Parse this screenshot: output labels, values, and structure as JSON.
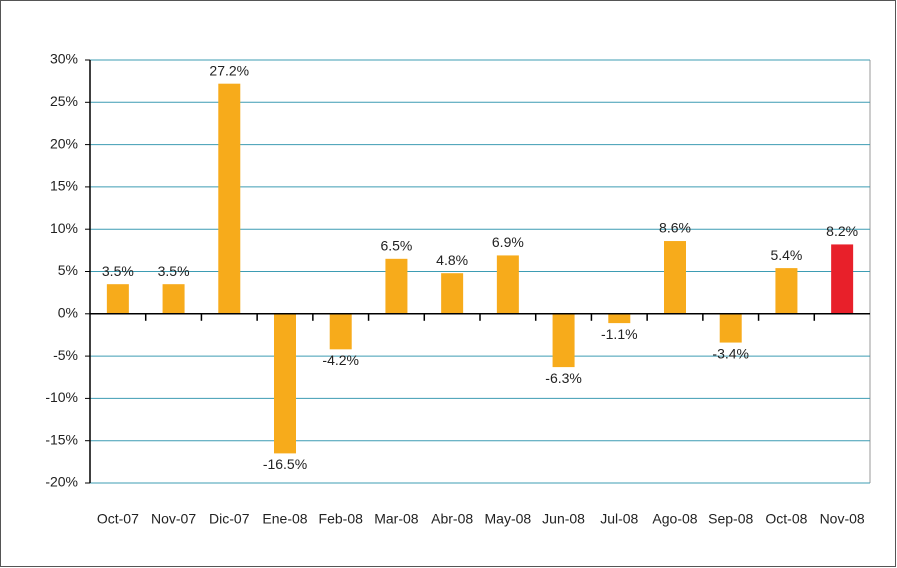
{
  "chart_data": {
    "type": "bar",
    "categories": [
      "Oct-07",
      "Nov-07",
      "Dic-07",
      "Ene-08",
      "Feb-08",
      "Mar-08",
      "Abr-08",
      "May-08",
      "Jun-08",
      "Jul-08",
      "Ago-08",
      "Sep-08",
      "Oct-08",
      "Nov-08"
    ],
    "values": [
      3.5,
      3.5,
      27.2,
      -16.5,
      -4.2,
      6.5,
      4.8,
      6.9,
      -6.3,
      -1.1,
      8.6,
      -3.4,
      5.4,
      8.2
    ],
    "value_labels": [
      "3.5%",
      "3.5%",
      "27.2%",
      "-16.5%",
      "-4.2%",
      "6.5%",
      "4.8%",
      "6.9%",
      "-6.3%",
      "-1.1%",
      "8.6%",
      "-3.4%",
      "5.4%",
      "8.2%"
    ],
    "colors": [
      "#f7ab1b",
      "#f7ab1b",
      "#f7ab1b",
      "#f7ab1b",
      "#f7ab1b",
      "#f7ab1b",
      "#f7ab1b",
      "#f7ab1b",
      "#f7ab1b",
      "#f7ab1b",
      "#f7ab1b",
      "#f7ab1b",
      "#f7ab1b",
      "#e8202a"
    ],
    "ylim": [
      -20,
      30
    ],
    "yticks": [
      {
        "value": -20,
        "label": "-20%"
      },
      {
        "value": -15,
        "label": "-15%"
      },
      {
        "value": -10,
        "label": "-10%"
      },
      {
        "value": -5,
        "label": "-5%"
      },
      {
        "value": 0,
        "label": "0%"
      },
      {
        "value": 5,
        "label": "5%"
      },
      {
        "value": 10,
        "label": "10%"
      },
      {
        "value": 15,
        "label": "15%"
      },
      {
        "value": 20,
        "label": "20%"
      },
      {
        "value": 25,
        "label": "25%"
      },
      {
        "value": 30,
        "label": "30%"
      }
    ],
    "grid": true
  }
}
